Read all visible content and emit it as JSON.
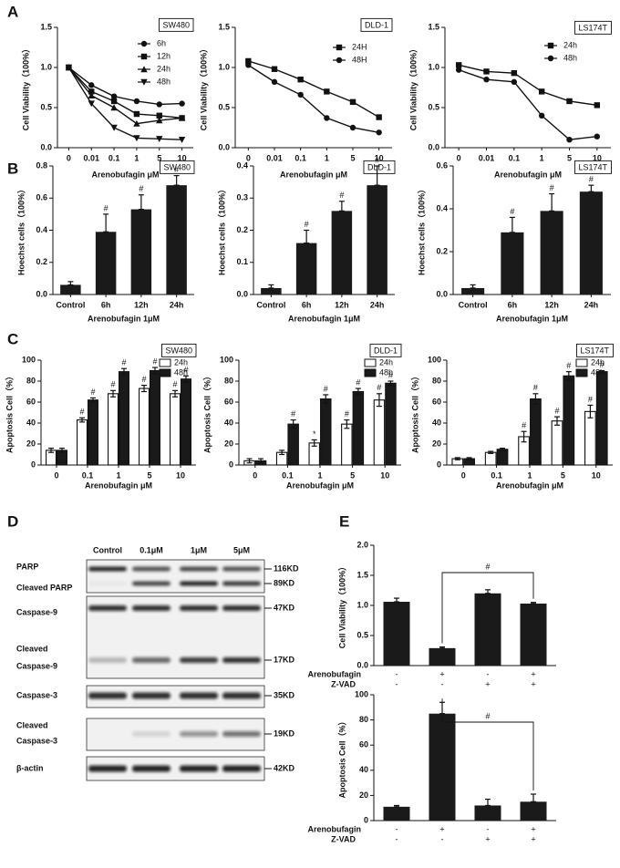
{
  "panel_labels": [
    "A",
    "B",
    "C",
    "D",
    "E"
  ],
  "chart_data": [
    {
      "type": "line",
      "title": "SW480",
      "xlabel": "Arenobufagin μM",
      "ylabel": "Cell Viability（100%）",
      "categories": [
        "0",
        "0.01",
        "0.1",
        "1",
        "5",
        "10"
      ],
      "ylim": [
        0,
        1.5
      ],
      "yticks": [
        {
          "value": 0,
          "label": "0.0"
        },
        0.5,
        {
          "value": 1,
          "label": "1.0"
        },
        1.5
      ],
      "series": [
        {
          "name": "6h",
          "color": "#111111",
          "marker": "circle",
          "values": [
            1.0,
            0.78,
            0.64,
            0.58,
            0.54,
            0.55
          ]
        },
        {
          "name": "12h",
          "color": "#111111",
          "marker": "square",
          "values": [
            1.0,
            0.7,
            0.58,
            0.42,
            0.4,
            0.37
          ]
        },
        {
          "name": "24h",
          "color": "#111111",
          "marker": "triangle-up",
          "values": [
            1.0,
            0.65,
            0.5,
            0.3,
            0.34,
            0.37
          ]
        },
        {
          "name": "48h",
          "color": "#111111",
          "marker": "triangle-down",
          "values": [
            1.0,
            0.55,
            0.25,
            0.12,
            0.11,
            0.1
          ]
        }
      ]
    },
    {
      "type": "line",
      "title": "DLD-1",
      "xlabel": "Arenobufagin μM",
      "ylabel": "Cell Viability（100%）",
      "categories": [
        "0",
        "0.01",
        "0.1",
        "1",
        "5",
        "10"
      ],
      "ylim": [
        0,
        1.5
      ],
      "yticks": [
        {
          "value": 0,
          "label": "0.0"
        },
        0.5,
        {
          "value": 1,
          "label": "1.0"
        },
        1.5
      ],
      "series": [
        {
          "name": "24H",
          "color": "#111111",
          "marker": "square",
          "values": [
            1.08,
            0.98,
            0.85,
            0.7,
            0.57,
            0.38
          ]
        },
        {
          "name": "48H",
          "color": "#111111",
          "marker": "circle",
          "values": [
            1.03,
            0.82,
            0.66,
            0.37,
            0.25,
            0.19
          ]
        }
      ]
    },
    {
      "type": "line",
      "title": "LS174T",
      "xlabel": "Arenobufagin μM",
      "ylabel": "Cell Viability（100%）",
      "categories": [
        "0",
        "0.01",
        "0.1",
        "1",
        "5",
        "10"
      ],
      "ylim": [
        0,
        1.5
      ],
      "yticks": [
        {
          "value": 0,
          "label": "0.0"
        },
        0.5,
        {
          "value": 1,
          "label": "1.0"
        },
        1.5
      ],
      "series": [
        {
          "name": "24h",
          "color": "#111111",
          "marker": "square",
          "values": [
            1.03,
            0.95,
            0.93,
            0.7,
            0.58,
            0.53
          ]
        },
        {
          "name": "48h",
          "color": "#111111",
          "marker": "circle",
          "values": [
            0.97,
            0.85,
            0.82,
            0.4,
            0.1,
            0.14
          ]
        }
      ]
    },
    {
      "type": "bar",
      "title": "SW480",
      "xlabel": "Arenobufagin 1μM",
      "ylabel": "Hoechst cells（100%）",
      "categories": [
        "Control",
        "6h",
        "12h",
        "24h"
      ],
      "color": "#1a1a1a",
      "ylim": [
        0,
        0.8
      ],
      "yticks": [
        {
          "value": 0,
          "label": "0.0"
        },
        0.2,
        0.4,
        0.6,
        0.8
      ],
      "values": [
        0.06,
        0.39,
        0.53,
        0.68
      ],
      "errors": [
        0.02,
        0.11,
        0.09,
        0.06
      ],
      "significance": [
        null,
        "#",
        "#",
        "#"
      ]
    },
    {
      "type": "bar",
      "title": "DLD-1",
      "xlabel": "Arenobufagin 1μM",
      "ylabel": "Hoechst cells（100%）",
      "categories": [
        "Control",
        "6h",
        "12h",
        "24h"
      ],
      "color": "#1a1a1a",
      "ylim": [
        0,
        0.4
      ],
      "yticks": [
        {
          "value": 0,
          "label": "0.0"
        },
        0.1,
        0.2,
        0.3,
        0.4
      ],
      "values": [
        0.02,
        0.16,
        0.26,
        0.34
      ],
      "errors": [
        0.01,
        0.04,
        0.03,
        0.06
      ],
      "significance": [
        null,
        "#",
        "#",
        "#"
      ]
    },
    {
      "type": "bar",
      "title": "LS174T",
      "xlabel": "Arenobufagin 1μM",
      "ylabel": "Hoechst cells（100%）",
      "categories": [
        "Control",
        "6h",
        "12h",
        "24h"
      ],
      "color": "#1a1a1a",
      "ylim": [
        0,
        0.6
      ],
      "yticks": [
        {
          "value": 0,
          "label": "0.0"
        },
        0.2,
        0.4,
        0.6
      ],
      "values": [
        0.03,
        0.29,
        0.39,
        0.48
      ],
      "errors": [
        0.015,
        0.07,
        0.08,
        0.03
      ],
      "significance": [
        null,
        "#",
        "#",
        "#"
      ]
    },
    {
      "type": "bar",
      "title": "SW480",
      "xlabel": "Arenobufagin μM",
      "ylabel": "Apoptosis Cell（%）",
      "categories": [
        "0",
        "0.1",
        "1",
        "5",
        "10"
      ],
      "ylim": [
        0,
        100
      ],
      "yticks": [
        0,
        20,
        40,
        60,
        80,
        100
      ],
      "series": [
        {
          "name": "24h",
          "color": "#ffffff",
          "values": [
            14,
            43,
            68,
            73,
            68
          ],
          "errors": [
            2,
            2,
            3,
            3,
            3
          ],
          "significance": [
            null,
            "#",
            "#",
            "#",
            "#"
          ]
        },
        {
          "name": "48h",
          "color": "#1a1a1a",
          "values": [
            14,
            62,
            89,
            90,
            82
          ],
          "errors": [
            2,
            2,
            3,
            3,
            3
          ],
          "significance": [
            null,
            "#",
            "#",
            "#",
            "#"
          ]
        }
      ]
    },
    {
      "type": "bar",
      "title": "DLD-1",
      "xlabel": "Arenobufagin μM",
      "ylabel": "Apoptosis Cell（%）",
      "categories": [
        "0",
        "0.1",
        "1",
        "5",
        "10"
      ],
      "ylim": [
        0,
        100
      ],
      "yticks": [
        0,
        20,
        40,
        60,
        80,
        100
      ],
      "series": [
        {
          "name": "24h",
          "color": "#ffffff",
          "values": [
            4,
            12,
            21,
            39,
            62
          ],
          "errors": [
            2,
            2,
            3,
            4,
            6
          ],
          "significance": [
            null,
            null,
            "*",
            "#",
            "#"
          ]
        },
        {
          "name": "48h",
          "color": "#1a1a1a",
          "values": [
            4,
            39,
            63,
            70,
            78
          ],
          "errors": [
            2,
            4,
            4,
            3,
            2
          ],
          "significance": [
            null,
            "#",
            "#",
            "#",
            "#"
          ]
        }
      ]
    },
    {
      "type": "bar",
      "title": "LS174T",
      "xlabel": "Arenobufagin μM",
      "ylabel": "Apoptosis Cell（%）",
      "categories": [
        "0",
        "0.1",
        "1",
        "5",
        "10"
      ],
      "ylim": [
        0,
        100
      ],
      "yticks": [
        0,
        20,
        40,
        60,
        80,
        100
      ],
      "series": [
        {
          "name": "24h",
          "color": "#ffffff",
          "values": [
            6,
            12,
            27,
            42,
            51
          ],
          "errors": [
            1,
            1,
            5,
            4,
            6
          ],
          "significance": [
            null,
            null,
            "#",
            "#",
            "#"
          ]
        },
        {
          "name": "48h",
          "color": "#1a1a1a",
          "values": [
            6,
            15,
            63,
            85,
            89
          ],
          "errors": [
            1,
            1,
            5,
            4,
            1
          ],
          "significance": [
            null,
            null,
            "#",
            "#",
            "#"
          ]
        }
      ]
    },
    {
      "type": "bar",
      "ylabel": "Cell Viability（100%）",
      "color": "#1a1a1a",
      "ylim": [
        0,
        2
      ],
      "yticks": [
        {
          "value": 0,
          "label": "0.0"
        },
        0.5,
        {
          "value": 1,
          "label": "1.0"
        },
        1.5,
        {
          "value": 2,
          "label": "2.0"
        }
      ],
      "values": [
        1.06,
        0.29,
        1.2,
        1.03
      ],
      "errors": [
        0.06,
        0.02,
        0.06,
        0.02
      ],
      "treatments": [
        {
          "name": "Arenobufagin",
          "signs": [
            "-",
            "+",
            "-",
            "+"
          ]
        },
        {
          "name": "Z-VAD",
          "signs": [
            "-",
            "-",
            "+",
            "+"
          ]
        }
      ],
      "comparison_label": "#"
    },
    {
      "type": "bar",
      "ylabel": "Apoptosis Cell（%）",
      "color": "#1a1a1a",
      "ylim": [
        0,
        100
      ],
      "yticks": [
        0,
        20,
        40,
        60,
        80,
        100
      ],
      "values": [
        11,
        85,
        12,
        15
      ],
      "errors": [
        1,
        9,
        5,
        6
      ],
      "treatments": [
        {
          "name": "Arenobufagin",
          "signs": [
            "-",
            "+",
            "-",
            "+"
          ]
        },
        {
          "name": "Z-VAD",
          "signs": [
            "-",
            "-",
            "+",
            "+"
          ]
        }
      ],
      "comparison_label": "#"
    }
  ],
  "blot": {
    "columns": [
      "Control",
      "0.1μM",
      "1μM",
      "5μM"
    ],
    "rows": [
      {
        "label": [
          "PARP"
        ],
        "size": "116KD"
      },
      {
        "label": [
          "Cleaved PARP"
        ],
        "size": "89KD"
      },
      {
        "label": [
          "Caspase-9"
        ],
        "size": "47KD"
      },
      {
        "label": [
          "Cleaved",
          "Caspase-9"
        ],
        "size": "17KD"
      },
      {
        "label": [
          "Caspase-3"
        ],
        "size": "35KD"
      },
      {
        "label": [
          "Cleaved",
          "Caspase-3"
        ],
        "size": "19KD"
      },
      {
        "label": [
          "β-actin"
        ],
        "size": "42KD"
      }
    ]
  }
}
